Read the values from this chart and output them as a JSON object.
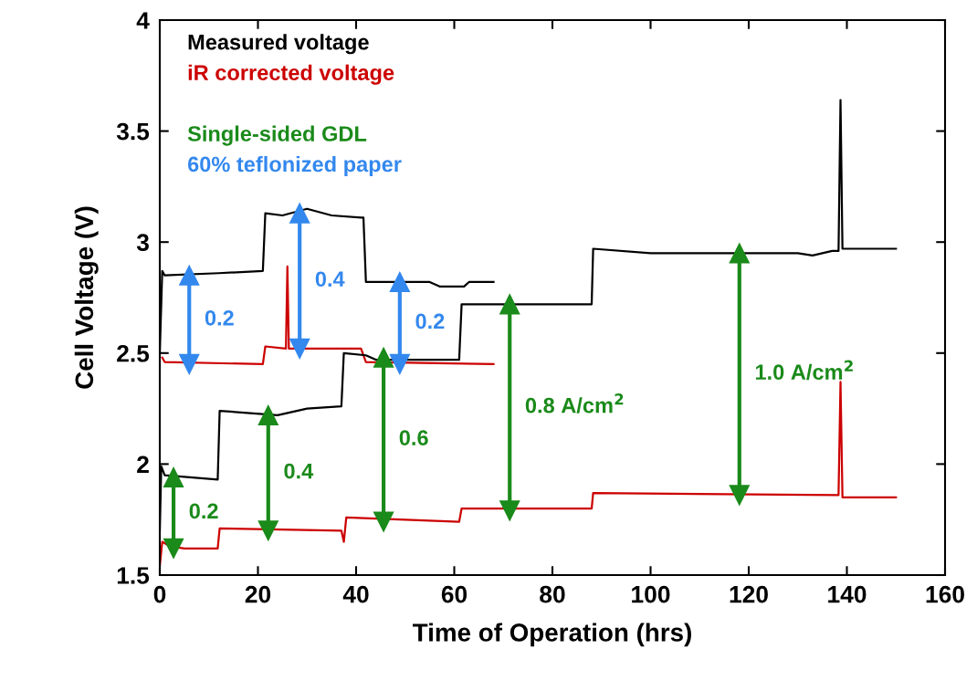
{
  "chart_data": {
    "type": "line",
    "xlabel": "Time of Operation (hrs)",
    "ylabel": "Cell Voltage (V)",
    "xlim": [
      0,
      160
    ],
    "xticks": [
      0,
      20,
      40,
      60,
      80,
      100,
      120,
      140,
      160
    ],
    "ylim": [
      1.5,
      4
    ],
    "yticks": [
      1.5,
      2,
      2.5,
      3,
      3.5,
      4
    ],
    "grid": false,
    "legend": "top left",
    "marker": "none",
    "line_style": "solid",
    "series": [
      {
        "name": "Measured voltage",
        "color": "#000000",
        "x": [
          0,
          0.5,
          1,
          12,
          21,
          21.5,
          25,
          30,
          35,
          41,
          41.5,
          42,
          55,
          57,
          62,
          63,
          68
        ],
        "values": [
          2.5,
          2.87,
          2.85,
          2.86,
          2.87,
          3.13,
          3.12,
          3.15,
          3.12,
          3.11,
          3.11,
          2.82,
          2.82,
          2.8,
          2.8,
          2.82,
          2.82
        ]
      },
      {
        "name": "iR corrected voltage",
        "color": "#cc0000",
        "x": [
          0.5,
          1,
          21,
          21.5,
          25.7,
          26,
          26.3,
          41,
          42,
          68
        ],
        "values": [
          2.48,
          2.46,
          2.45,
          2.53,
          2.52,
          2.89,
          2.52,
          2.52,
          2.46,
          2.45
        ]
      },
      {
        "color": "#000000",
        "x": [
          0,
          0.3,
          1,
          11.8,
          12.2,
          24,
          30,
          37,
          37.5,
          42,
          44,
          61,
          61.5,
          88,
          88.3,
          100,
          130,
          133,
          137,
          138.3,
          138.7,
          139.1,
          139.5,
          150
        ],
        "values": [
          1.7,
          1.99,
          1.95,
          1.93,
          2.24,
          2.22,
          2.25,
          2.26,
          2.5,
          2.49,
          2.47,
          2.47,
          2.72,
          2.72,
          2.97,
          2.95,
          2.95,
          2.94,
          2.96,
          2.96,
          3.64,
          2.97,
          2.97,
          2.97
        ]
      },
      {
        "color": "#cc0000",
        "x": [
          0,
          0.5,
          2,
          5,
          11.8,
          12.2,
          37,
          37.5,
          38,
          61,
          61.5,
          88,
          88.3,
          138.3,
          138.7,
          139.1,
          150
        ],
        "values": [
          1.54,
          1.65,
          1.63,
          1.62,
          1.62,
          1.71,
          1.7,
          1.65,
          1.76,
          1.74,
          1.8,
          1.8,
          1.87,
          1.86,
          2.37,
          1.85,
          1.85
        ]
      },
      {
        "name": "0.2",
        "color": "#1a8a1a",
        "marker": "triangle",
        "x": [
          2.8,
          2.8
        ],
        "values": [
          1.62,
          1.94
        ]
      },
      {
        "name": "0.4",
        "color": "#1a8a1a",
        "marker": "triangle",
        "x": [
          22.1,
          22.1
        ],
        "values": [
          1.7,
          2.22
        ]
      },
      {
        "name": "0.6",
        "color": "#1a8a1a",
        "marker": "triangle",
        "x": [
          45.6,
          45.6
        ],
        "values": [
          1.74,
          2.48
        ]
      },
      {
        "name": "0.8 A/cm$^{2}$",
        "color": "#1a8a1a",
        "marker": "triangle",
        "x": [
          71.3,
          71.3
        ],
        "values": [
          1.79,
          2.72
        ]
      },
      {
        "name": "1.0 A/cm$^{2}$",
        "color": "#1a8a1a",
        "marker": "triangle",
        "x": [
          118.1,
          118.1
        ],
        "values": [
          1.86,
          2.95
        ]
      },
      {
        "name": "0.2",
        "color": "#3388ee",
        "marker": "triangle",
        "x": [
          6,
          6
        ],
        "values": [
          2.45,
          2.85
        ]
      },
      {
        "name": "0.4",
        "color": "#3388ee",
        "marker": "triangle",
        "x": [
          28.5,
          28.5
        ],
        "values": [
          2.52,
          3.13
        ]
      },
      {
        "name": "0.2",
        "color": "#3388ee",
        "marker": "triangle",
        "x": [
          48.9,
          48.9
        ],
        "values": [
          2.45,
          2.82
        ]
      }
    ],
    "annotations": [
      "Single-sided GDL",
      "60% teflonized paper"
    ]
  }
}
